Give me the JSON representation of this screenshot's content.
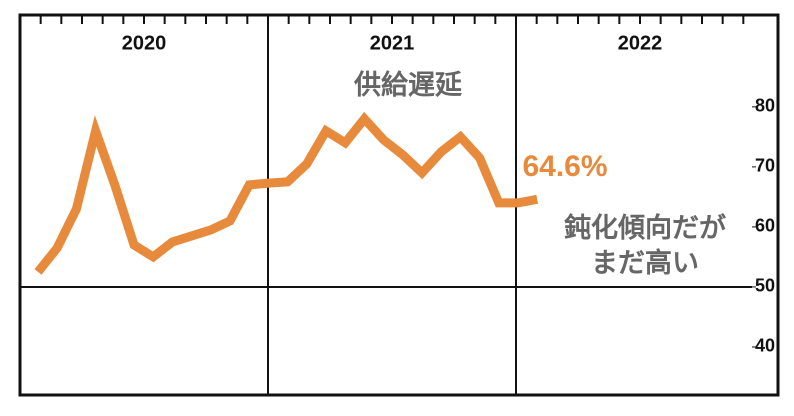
{
  "chart_data": {
    "type": "line",
    "year_labels": [
      "2020",
      "2021",
      "2022"
    ],
    "annotations": [
      "供給遅延",
      "鈍化傾向だが",
      "まだ高い"
    ],
    "categories": [
      null,
      null,
      null,
      null,
      null,
      null,
      null,
      null,
      null,
      null,
      null,
      null,
      null,
      null,
      null,
      null,
      null,
      null,
      null,
      null,
      null,
      null,
      null,
      null,
      null,
      null,
      null
    ],
    "values": [
      52.5,
      56.5,
      63,
      76,
      67,
      57,
      55,
      57.5,
      58.5,
      59.5,
      61,
      67,
      67.3,
      67.5,
      70.5,
      76,
      74,
      78,
      74.5,
      72,
      69,
      72.5,
      75,
      71.5,
      64,
      64,
      64.6
    ],
    "value_labels": [
      null,
      null,
      null,
      null,
      null,
      null,
      null,
      null,
      null,
      null,
      null,
      null,
      null,
      null,
      null,
      null,
      null,
      null,
      null,
      null,
      null,
      null,
      null,
      null,
      null,
      null,
      "64.6%"
    ],
    "color": "#e88a3c",
    "ylim": [
      32,
      95.3
    ],
    "yticks": [
      40,
      50,
      60,
      70,
      80
    ]
  }
}
